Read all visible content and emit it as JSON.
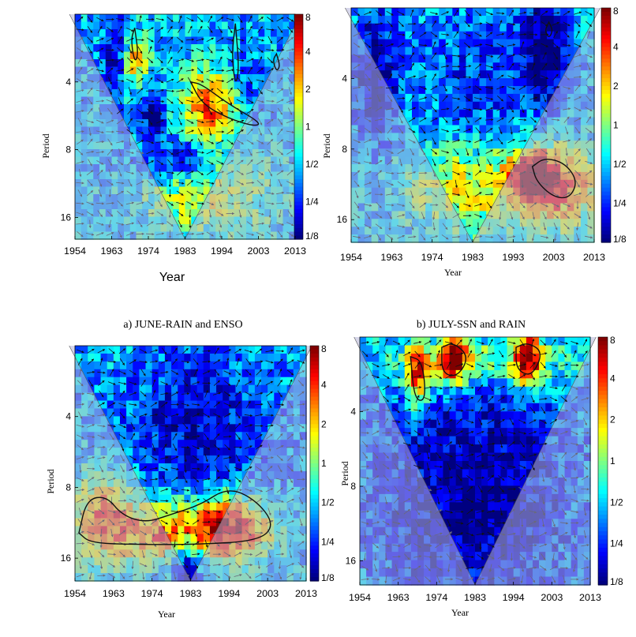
{
  "colors": {
    "bg": "#00007f",
    "cone": "#b4b4d8",
    "contour": "#111111",
    "arrow_in": "#111111",
    "arrow_out": "#6a6a7a"
  },
  "colorbar": {
    "labels": [
      "8",
      "4",
      "2",
      "1",
      "1/2",
      "1/4",
      "1/8"
    ],
    "colors": [
      "#800000",
      "#ff0000",
      "#ff8000",
      "#ffff00",
      "#80ff80",
      "#00ffff",
      "#0080ff",
      "#0000ff",
      "#000080"
    ]
  },
  "captions": {
    "a": "a) JUNE-RAIN and ENSO",
    "b": "b) JULY-SSN and RAIN"
  },
  "chart_data": [
    {
      "type": "heatmap",
      "subtitle": "",
      "xlabel": "Year",
      "ylabel": "Period",
      "x_ticks": [
        "1954",
        "1963",
        "1974",
        "1983",
        "1994",
        "2003",
        "2013"
      ],
      "y_ticks": [
        "4",
        "8",
        "16"
      ],
      "xlim": [
        1954,
        2013
      ],
      "ylim_period": [
        2,
        20
      ],
      "colorbar": [
        "8",
        "4",
        "2",
        "1",
        "1/2",
        "1/4",
        "1/8"
      ],
      "blobs": [
        {
          "x": 1990,
          "p": 5.2,
          "rx": 7,
          "rp": 0.16,
          "level": 2
        },
        {
          "x": 1970,
          "p": 3.2,
          "rx": 4,
          "rp": 0.12,
          "level": 1
        },
        {
          "x": 1983,
          "p": 8.8,
          "rx": 12,
          "rp": 0.1,
          "level": -3
        },
        {
          "x": 1990,
          "p": 12.5,
          "rx": 20,
          "rp": 0.2,
          "level": 0.5
        },
        {
          "x": 1965,
          "p": 3,
          "rx": 3,
          "rp": 0.18,
          "level": -3
        },
        {
          "x": 1975,
          "p": 5.5,
          "rx": 3,
          "rp": 0.12,
          "level": -3
        },
        {
          "x": 2000,
          "p": 3.8,
          "rx": 4,
          "rp": 0.15,
          "level": -2
        }
      ],
      "significance_contours": [
        [
          [
            1985,
            4.0
          ],
          [
            1988,
            5.0
          ],
          [
            1995,
            5.8
          ],
          [
            2002,
            6.3
          ],
          [
            2004,
            6.1
          ],
          [
            1995,
            5.0
          ],
          [
            1988,
            4.1
          ]
        ],
        [
          [
            1970,
            2.3
          ],
          [
            1971,
            3.0
          ],
          [
            1970,
            3.3
          ],
          [
            1969,
            2.6
          ]
        ],
        [
          [
            1997,
            2.2
          ],
          [
            1998,
            3.5
          ],
          [
            1997,
            4.2
          ],
          [
            1996,
            3.0
          ]
        ],
        [
          [
            2008,
            3.0
          ],
          [
            2009,
            3.4
          ],
          [
            2008,
            3.6
          ],
          [
            2007,
            3.2
          ]
        ]
      ]
    },
    {
      "type": "heatmap",
      "subtitle": "",
      "xlabel": "Year",
      "ylabel": "Period",
      "x_ticks": [
        "1954",
        "1963",
        "1974",
        "1983",
        "1993",
        "2003",
        "2013"
      ],
      "y_ticks": [
        "4",
        "8",
        "16"
      ],
      "xlim": [
        1954,
        2013
      ],
      "ylim_period": [
        2,
        20
      ],
      "colorbar": [
        "8",
        "4",
        "2",
        "1",
        "1/2",
        "1/4",
        "1/8"
      ],
      "blobs": [
        {
          "x": 1998,
          "p": 10.5,
          "rx": 5,
          "rp": 0.1,
          "level": 2.5
        },
        {
          "x": 2005,
          "p": 11.5,
          "rx": 10,
          "rp": 0.18,
          "level": 1.5
        },
        {
          "x": 1983,
          "p": 11.5,
          "rx": 18,
          "rp": 0.2,
          "level": 0.8
        },
        {
          "x": 1985,
          "p": 4.5,
          "rx": 14,
          "rp": 0.35,
          "level": -2
        },
        {
          "x": 1960,
          "p": 4,
          "rx": 5,
          "rp": 0.3,
          "level": -3
        },
        {
          "x": 2001,
          "p": 3,
          "rx": 6,
          "rp": 0.25,
          "level": -3
        }
      ],
      "significance_contours": [
        [
          [
            1998,
            9.5
          ],
          [
            2001,
            8.7
          ],
          [
            2006,
            9.2
          ],
          [
            2009,
            11.0
          ],
          [
            2007,
            13.0
          ],
          [
            2003,
            12.8
          ],
          [
            1999,
            11.0
          ]
        ],
        [
          [
            2002,
            2.3
          ],
          [
            2003,
            2.5
          ],
          [
            2002,
            2.7
          ],
          [
            2001,
            2.5
          ]
        ]
      ]
    },
    {
      "type": "heatmap",
      "subtitle": "",
      "xlabel": "Year",
      "ylabel": "Period",
      "x_ticks": [
        "1954",
        "1963",
        "1974",
        "1983",
        "1994",
        "2003",
        "2013"
      ],
      "y_ticks": [
        "4",
        "8",
        "16"
      ],
      "xlim": [
        1954,
        2013
      ],
      "ylim_period": [
        2,
        20
      ],
      "colorbar": [
        "8",
        "4",
        "2",
        "1",
        "1/2",
        "1/4",
        "1/8"
      ],
      "blobs": [
        {
          "x": 1992,
          "p": 12,
          "rx": 12,
          "rp": 0.14,
          "level": 3
        },
        {
          "x": 1962,
          "p": 11,
          "rx": 8,
          "rp": 0.2,
          "level": 2
        },
        {
          "x": 1975,
          "p": 12.5,
          "rx": 8,
          "rp": 0.12,
          "level": 1.2
        },
        {
          "x": 1985,
          "p": 4.5,
          "rx": 18,
          "rp": 0.35,
          "level": -2.5
        },
        {
          "x": 1983,
          "p": 17,
          "rx": 4,
          "rp": 0.12,
          "level": -3
        }
      ],
      "significance_contours": [
        [
          [
            1955,
            12.5
          ],
          [
            1957,
            9.0
          ],
          [
            1962,
            8.7
          ],
          [
            1966,
            10.5
          ],
          [
            1972,
            11.3
          ],
          [
            1978,
            10.5
          ],
          [
            1986,
            9.5
          ],
          [
            1993,
            8.0
          ],
          [
            2000,
            9.0
          ],
          [
            2005,
            11.5
          ],
          [
            2001,
            13.5
          ],
          [
            1985,
            14.0
          ],
          [
            1970,
            14.0
          ],
          [
            1958,
            13.8
          ]
        ]
      ]
    },
    {
      "type": "heatmap",
      "subtitle": "",
      "xlabel": "Year",
      "ylabel": "Period",
      "x_ticks": [
        "1954",
        "1963",
        "1974",
        "1983",
        "1994",
        "2003",
        "2013"
      ],
      "y_ticks": [
        "4",
        "8",
        "16"
      ],
      "xlim": [
        1954,
        2013
      ],
      "ylim_period": [
        2,
        20
      ],
      "colorbar": [
        "8",
        "4",
        "2",
        "1",
        "1/2",
        "1/4",
        "1/8"
      ],
      "blobs": [
        {
          "x": 1978,
          "p": 2.4,
          "rx": 3.5,
          "rp": 0.12,
          "level": 2.5
        },
        {
          "x": 1997,
          "p": 2.4,
          "rx": 3.5,
          "rp": 0.12,
          "level": 2.5
        },
        {
          "x": 1969,
          "p": 2.9,
          "rx": 3,
          "rp": 0.14,
          "level": 2
        },
        {
          "x": 1985,
          "p": 2.5,
          "rx": 25,
          "rp": 0.09,
          "level": 0.5
        },
        {
          "x": 1983,
          "p": 9,
          "rx": 25,
          "rp": 0.5,
          "level": -3
        }
      ],
      "significance_contours": [
        [
          [
            1975,
            2.2
          ],
          [
            1978,
            2.1
          ],
          [
            1982,
            2.4
          ],
          [
            1979,
            2.9
          ],
          [
            1975,
            2.8
          ]
        ],
        [
          [
            1994,
            2.2
          ],
          [
            1997,
            2.1
          ],
          [
            2001,
            2.3
          ],
          [
            1998,
            2.9
          ],
          [
            1994,
            2.7
          ]
        ],
        [
          [
            1967,
            2.4
          ],
          [
            1970,
            2.5
          ],
          [
            1971,
            3.6
          ],
          [
            1968,
            3.6
          ]
        ]
      ]
    }
  ]
}
